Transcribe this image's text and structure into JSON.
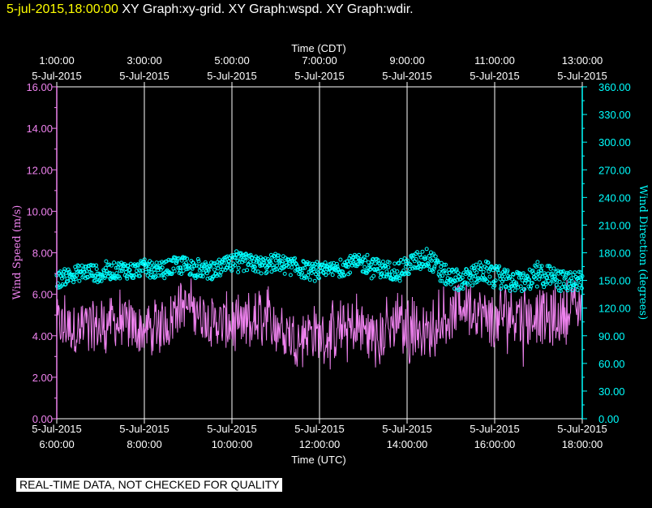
{
  "header": {
    "timestamp": "5-jul-2015,18:00:00",
    "title": "XY Graph:xy-grid.  XY Graph:wspd.  XY Graph:wdir."
  },
  "disclaimer": "REAL-TIME DATA, NOT CHECKED FOR QUALITY",
  "chart_data": {
    "type": "line",
    "top_axis_title": "Time (CDT)",
    "bottom_axis_title": "Time (UTC)",
    "ylabel_left": "Wind Speed (m/s)",
    "ylabel_right": "Wind Direction (degrees)",
    "x_range_hours_utc": [
      6,
      18
    ],
    "grid": true,
    "colors": {
      "background": "#000000",
      "frame": "#ffffff",
      "grid": "#ffffff",
      "wspd": "#ee82ee",
      "wdir": "#00ffff",
      "header_timestamp": "#ffff00"
    },
    "top_ticks": [
      {
        "t": 6,
        "time": "1:00:00",
        "date": "5-Jul-2015"
      },
      {
        "t": 8,
        "time": "3:00:00",
        "date": "5-Jul-2015"
      },
      {
        "t": 10,
        "time": "5:00:00",
        "date": "5-Jul-2015"
      },
      {
        "t": 12,
        "time": "7:00:00",
        "date": "5-Jul-2015"
      },
      {
        "t": 14,
        "time": "9:00:00",
        "date": "5-Jul-2015"
      },
      {
        "t": 16,
        "time": "11:00:00",
        "date": "5-Jul-2015"
      },
      {
        "t": 18,
        "time": "13:00:00",
        "date": "5-Jul-2015"
      }
    ],
    "bottom_ticks": [
      {
        "t": 6,
        "date": "5-Jul-2015",
        "time": "6:00:00"
      },
      {
        "t": 8,
        "date": "5-Jul-2015",
        "time": "8:00:00"
      },
      {
        "t": 10,
        "date": "5-Jul-2015",
        "time": "10:00:00"
      },
      {
        "t": 12,
        "date": "5-Jul-2015",
        "time": "12:00:00"
      },
      {
        "t": 14,
        "date": "5-Jul-2015",
        "time": "14:00:00"
      },
      {
        "t": 16,
        "date": "5-Jul-2015",
        "time": "16:00:00"
      },
      {
        "t": 18,
        "date": "5-Jul-2015",
        "time": "18:00:00"
      }
    ],
    "left_axis": {
      "min": 0,
      "max": 16,
      "ticks": [
        {
          "v": 0,
          "label": "0.00"
        },
        {
          "v": 2,
          "label": "2.00"
        },
        {
          "v": 4,
          "label": "4.00"
        },
        {
          "v": 6,
          "label": "6.00"
        },
        {
          "v": 8,
          "label": "8.00"
        },
        {
          "v": 10,
          "label": "10.00"
        },
        {
          "v": 12,
          "label": "12.00"
        },
        {
          "v": 14,
          "label": "14.00"
        },
        {
          "v": 16,
          "label": "16.00"
        }
      ]
    },
    "right_axis": {
      "min": 0,
      "max": 360,
      "ticks": [
        {
          "v": 0,
          "label": "0.00"
        },
        {
          "v": 30,
          "label": "30.00"
        },
        {
          "v": 60,
          "label": "60.00"
        },
        {
          "v": 90,
          "label": "90.00"
        },
        {
          "v": 120,
          "label": "120.00"
        },
        {
          "v": 150,
          "label": "150.00"
        },
        {
          "v": 180,
          "label": "180.00"
        },
        {
          "v": 210,
          "label": "210.00"
        },
        {
          "v": 240,
          "label": "240.00"
        },
        {
          "v": 270,
          "label": "270.00"
        },
        {
          "v": 300,
          "label": "300.00"
        },
        {
          "v": 330,
          "label": "330.00"
        },
        {
          "v": 360,
          "label": "360.00"
        }
      ]
    },
    "series": [
      {
        "key": "wspd",
        "axis": "left",
        "style": "line",
        "x_hours_utc": [
          6.0,
          6.25,
          6.5,
          6.75,
          7.0,
          7.25,
          7.5,
          7.75,
          8.0,
          8.25,
          8.5,
          8.75,
          9.0,
          9.25,
          9.5,
          9.75,
          10.0,
          10.25,
          10.5,
          10.75,
          11.0,
          11.25,
          11.5,
          11.75,
          12.0,
          12.25,
          12.5,
          12.75,
          13.0,
          13.25,
          13.5,
          13.75,
          14.0,
          14.25,
          14.5,
          14.75,
          15.0,
          15.25,
          15.5,
          15.75,
          16.0,
          16.25,
          16.5,
          16.75,
          17.0,
          17.25,
          17.5,
          17.75,
          18.0
        ],
        "values": [
          4.6,
          4.4,
          4.3,
          4.5,
          4.4,
          4.7,
          4.5,
          4.4,
          4.3,
          4.4,
          4.6,
          5.6,
          5.3,
          5.0,
          4.8,
          4.6,
          4.4,
          4.3,
          4.6,
          5.0,
          4.5,
          4.2,
          4.0,
          4.1,
          4.0,
          3.9,
          4.2,
          4.5,
          4.3,
          3.9,
          4.1,
          4.6,
          4.2,
          4.4,
          4.0,
          5.0,
          4.8,
          5.6,
          5.4,
          5.0,
          4.6,
          5.2,
          4.9,
          4.8,
          5.0,
          4.7,
          4.9,
          5.4,
          5.1
        ],
        "range_low": [
          3.0,
          2.9,
          2.7,
          2.9,
          2.8,
          3.1,
          2.9,
          2.8,
          2.6,
          2.9,
          3.0,
          4.1,
          3.8,
          3.5,
          3.3,
          3.0,
          2.8,
          2.7,
          3.0,
          3.4,
          2.9,
          2.6,
          2.4,
          2.5,
          2.6,
          2.3,
          2.5,
          2.8,
          2.7,
          2.3,
          2.5,
          3.0,
          2.5,
          2.7,
          2.3,
          3.4,
          3.3,
          3.9,
          3.6,
          3.1,
          2.9,
          3.2,
          2.5,
          2.5,
          3.2,
          2.7,
          3.3,
          3.8,
          4.0
        ],
        "range_high": [
          6.4,
          6.1,
          6.0,
          6.4,
          6.2,
          6.5,
          6.3,
          6.1,
          5.9,
          6.1,
          6.3,
          6.8,
          6.9,
          6.6,
          6.4,
          6.2,
          6.1,
          6.0,
          6.4,
          6.9,
          6.2,
          5.9,
          5.6,
          5.8,
          5.8,
          5.7,
          6.1,
          6.4,
          6.2,
          5.6,
          5.9,
          6.5,
          6.2,
          6.3,
          5.8,
          6.7,
          6.4,
          7.0,
          7.1,
          6.6,
          6.2,
          7.0,
          6.6,
          6.5,
          7.0,
          6.5,
          6.8,
          7.1,
          6.6
        ]
      },
      {
        "key": "wdir",
        "axis": "right",
        "style": "markers",
        "x_hours_utc": [
          6.0,
          6.25,
          6.5,
          6.75,
          7.0,
          7.25,
          7.5,
          7.75,
          8.0,
          8.25,
          8.5,
          8.75,
          9.0,
          9.25,
          9.5,
          9.75,
          10.0,
          10.25,
          10.5,
          10.75,
          11.0,
          11.25,
          11.5,
          11.75,
          12.0,
          12.25,
          12.5,
          12.75,
          13.0,
          13.25,
          13.5,
          13.75,
          14.0,
          14.25,
          14.5,
          14.75,
          15.0,
          15.25,
          15.5,
          15.75,
          16.0,
          16.25,
          16.5,
          16.75,
          17.0,
          17.25,
          17.5,
          17.75,
          18.0
        ],
        "values": [
          150,
          155,
          158,
          160,
          156,
          160,
          162,
          160,
          164,
          160,
          162,
          167,
          166,
          162,
          160,
          164,
          168,
          170,
          168,
          166,
          170,
          166,
          164,
          160,
          158,
          160,
          164,
          168,
          168,
          164,
          162,
          160,
          165,
          172,
          175,
          160,
          152,
          150,
          155,
          160,
          155,
          150,
          148,
          150,
          155,
          155,
          150,
          148,
          150
        ],
        "range_low": [
          140,
          145,
          146,
          148,
          145,
          148,
          150,
          148,
          152,
          148,
          150,
          154,
          152,
          150,
          148,
          150,
          155,
          156,
          155,
          152,
          156,
          152,
          150,
          146,
          145,
          147,
          150,
          154,
          154,
          150,
          148,
          146,
          150,
          158,
          160,
          145,
          138,
          136,
          140,
          145,
          140,
          136,
          132,
          135,
          140,
          140,
          136,
          133,
          135
        ],
        "range_high": [
          165,
          168,
          170,
          172,
          170,
          172,
          175,
          173,
          176,
          172,
          175,
          180,
          178,
          175,
          173,
          176,
          181,
          183,
          180,
          178,
          182,
          178,
          176,
          172,
          170,
          172,
          176,
          180,
          180,
          176,
          174,
          172,
          178,
          190,
          188,
          175,
          168,
          166,
          170,
          178,
          170,
          166,
          164,
          166,
          178,
          170,
          165,
          163,
          170
        ]
      }
    ]
  }
}
